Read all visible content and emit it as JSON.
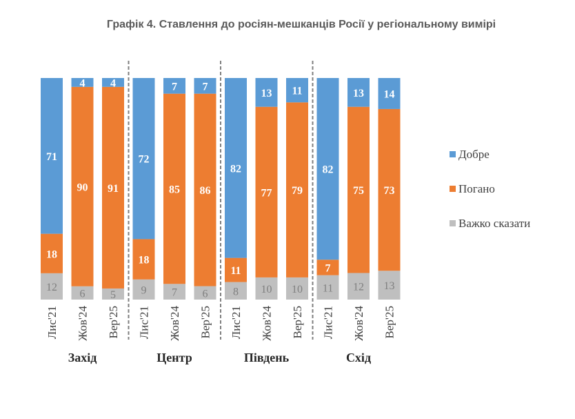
{
  "chart_data": {
    "type": "bar",
    "stacked": true,
    "title": "Графік 4. Ставлення до росіян-мешканців Росії у регіональному вимірі",
    "groups": [
      "Захід",
      "Центр",
      "Південь",
      "Схід"
    ],
    "periods": [
      "Лис'21",
      "Жов'24",
      "Вер'25"
    ],
    "series": [
      {
        "name": "Добре",
        "color": "#5b9bd5",
        "values": [
          [
            71,
            4,
            4
          ],
          [
            72,
            7,
            7
          ],
          [
            82,
            13,
            11
          ],
          [
            82,
            13,
            14
          ]
        ]
      },
      {
        "name": "Погано",
        "color": "#ed7d31",
        "values": [
          [
            18,
            90,
            91
          ],
          [
            18,
            85,
            86
          ],
          [
            11,
            77,
            79
          ],
          [
            7,
            75,
            73
          ]
        ]
      },
      {
        "name": "Важко сказати",
        "color": "#bfbfbf",
        "values": [
          [
            12,
            6,
            5
          ],
          [
            9,
            7,
            6
          ],
          [
            8,
            10,
            10
          ],
          [
            11,
            12,
            13
          ]
        ]
      }
    ],
    "legend_position": "right",
    "grid": false
  }
}
